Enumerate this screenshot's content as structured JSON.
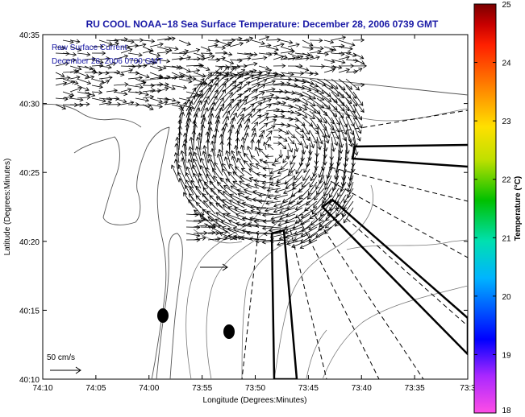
{
  "chart_data": {
    "type": "quiver",
    "title": "RU COOL  NOAA−18  Sea Surface Temperature:  December 28, 2006 0739 GMT",
    "legend": [
      "Raw Surface Current",
      "December 28, 2006 0700 GMT"
    ],
    "xlabel": "Longitude (Degrees:Minutes)",
    "ylabel": "Latitude (Degrees:Minutes)",
    "xlim_min": [
      -74.1667,
      -73.5
    ],
    "ylim_min": [
      40.1667,
      40.5833
    ],
    "x_ticks": [
      "74:10",
      "74:05",
      "74:00",
      "73:55",
      "73:50",
      "73:45",
      "73:40",
      "73:35",
      "73:3"
    ],
    "y_ticks": [
      "40:35",
      "40:30",
      "40:25",
      "40:20",
      "40:15",
      "40:10"
    ],
    "scale_label": "50 cm/s",
    "colorbar": {
      "label": "Temperature (°C)",
      "range": [
        18,
        25
      ],
      "ticks": [
        "25",
        "24",
        "23",
        "22",
        "21",
        "20",
        "19",
        "18"
      ]
    },
    "current_field": {
      "center_lon": -73.85,
      "center_lat": 40.42,
      "pattern": "anticyclonic eddy in the New York Bight apex",
      "max_speed_cm_s": 50
    },
    "markers": [
      {
        "lon": -73.98,
        "lat": 40.245
      },
      {
        "lon": -73.875,
        "lat": 40.228
      }
    ]
  },
  "colors": {
    "title": "#1a1aa6",
    "colorbar": [
      "#ff4de6",
      "#aa28ff",
      "#0000ff",
      "#00b4ff",
      "#00e0b0",
      "#00c000",
      "#c0e000",
      "#ffe000",
      "#ff8000",
      "#ff2000",
      "#c80000",
      "#7a0000"
    ]
  }
}
